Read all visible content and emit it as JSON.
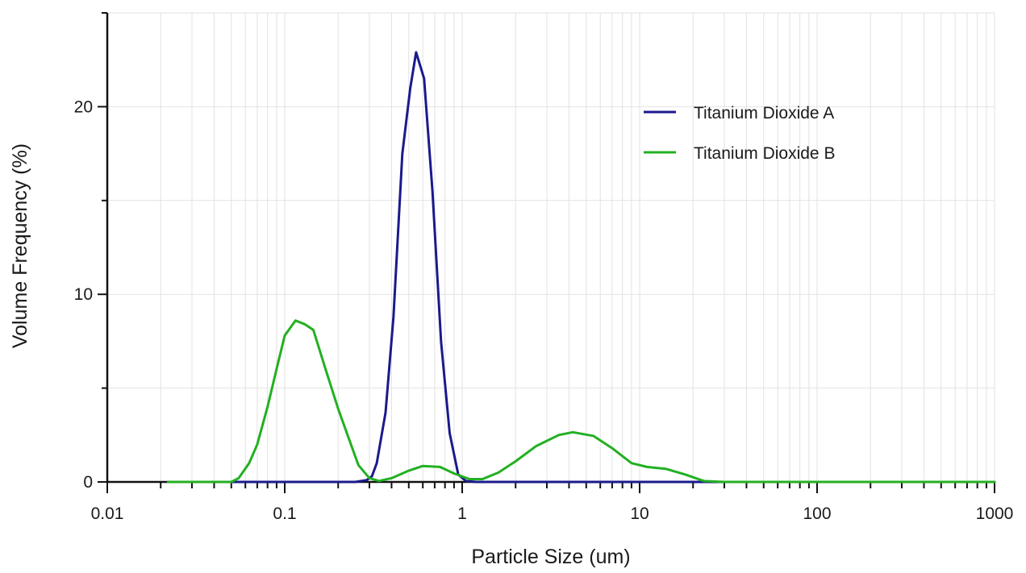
{
  "chart_data": {
    "type": "line",
    "xlabel": "Particle Size (um)",
    "ylabel": "Volume Frequency (%)",
    "x_scale": "log",
    "xlim": [
      0.01,
      1000
    ],
    "ylim": [
      0,
      25
    ],
    "x_ticks": [
      0.01,
      0.1,
      1,
      10,
      100,
      1000
    ],
    "x_tick_labels": [
      "0.01",
      "0.1",
      "1",
      "10",
      "100",
      "1000"
    ],
    "y_ticks": [
      0,
      10,
      20
    ],
    "y_tick_labels": [
      "0",
      "10",
      "20"
    ],
    "grid": true,
    "legend_position": "top-right",
    "series": [
      {
        "name": "Titanium Dioxide A",
        "color": "#1a1a8c",
        "points": [
          [
            0.022,
            0
          ],
          [
            0.1,
            0
          ],
          [
            0.25,
            0
          ],
          [
            0.29,
            0.1
          ],
          [
            0.31,
            0.3
          ],
          [
            0.33,
            1.0
          ],
          [
            0.37,
            3.7
          ],
          [
            0.41,
            8.8
          ],
          [
            0.46,
            17.5
          ],
          [
            0.51,
            21.0
          ],
          [
            0.55,
            22.9
          ],
          [
            0.61,
            21.5
          ],
          [
            0.68,
            15.5
          ],
          [
            0.76,
            7.5
          ],
          [
            0.85,
            2.6
          ],
          [
            0.95,
            0.4
          ],
          [
            1.05,
            0.05
          ],
          [
            1.2,
            0
          ],
          [
            10,
            0
          ],
          [
            100,
            0
          ],
          [
            1000,
            0
          ]
        ]
      },
      {
        "name": "Titanium Dioxide B",
        "color": "#22b022",
        "points": [
          [
            0.022,
            0
          ],
          [
            0.05,
            0
          ],
          [
            0.055,
            0.2
          ],
          [
            0.063,
            1.0
          ],
          [
            0.07,
            2.0
          ],
          [
            0.08,
            4.0
          ],
          [
            0.092,
            6.4
          ],
          [
            0.1,
            7.8
          ],
          [
            0.115,
            8.6
          ],
          [
            0.13,
            8.4
          ],
          [
            0.145,
            8.1
          ],
          [
            0.17,
            6.0
          ],
          [
            0.2,
            3.9
          ],
          [
            0.23,
            2.3
          ],
          [
            0.26,
            0.9
          ],
          [
            0.3,
            0.2
          ],
          [
            0.34,
            0.05
          ],
          [
            0.4,
            0.2
          ],
          [
            0.5,
            0.6
          ],
          [
            0.6,
            0.85
          ],
          [
            0.75,
            0.8
          ],
          [
            0.9,
            0.45
          ],
          [
            1.1,
            0.15
          ],
          [
            1.3,
            0.15
          ],
          [
            1.6,
            0.5
          ],
          [
            2.0,
            1.1
          ],
          [
            2.6,
            1.9
          ],
          [
            3.5,
            2.5
          ],
          [
            4.2,
            2.65
          ],
          [
            5.5,
            2.45
          ],
          [
            7.0,
            1.8
          ],
          [
            9.0,
            1.0
          ],
          [
            11.0,
            0.8
          ],
          [
            14.0,
            0.7
          ],
          [
            18.0,
            0.4
          ],
          [
            23.0,
            0.05
          ],
          [
            30.0,
            0
          ],
          [
            100,
            0
          ],
          [
            1000,
            0
          ]
        ]
      }
    ]
  }
}
